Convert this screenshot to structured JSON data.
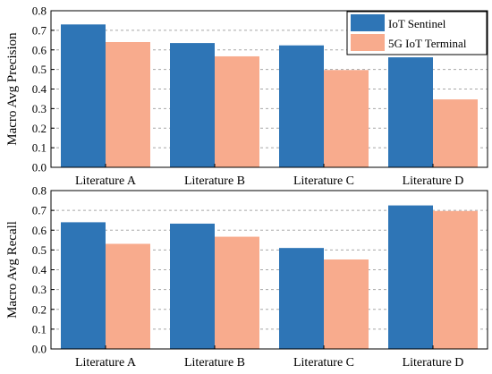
{
  "chart_data": [
    {
      "type": "bar",
      "categories": [
        "Literature A",
        "Literature B",
        "Literature C",
        "Literature D"
      ],
      "series": [
        {
          "name": "IoT Sentinel",
          "values": [
            0.73,
            0.635,
            0.623,
            0.562
          ]
        },
        {
          "name": "5G IoT Terminal",
          "values": [
            0.64,
            0.567,
            0.497,
            0.347
          ]
        }
      ],
      "ylabel": "Macro Avg Precision",
      "ylim": [
        0,
        0.8
      ],
      "yticks": [
        "0.0",
        "0.1",
        "0.2",
        "0.3",
        "0.4",
        "0.5",
        "0.6",
        "0.7",
        "0.8"
      ],
      "grid": true,
      "legend": "top-right"
    },
    {
      "type": "bar",
      "categories": [
        "Literature A",
        "Literature B",
        "Literature C",
        "Literature D"
      ],
      "series": [
        {
          "name": "IoT Sentinel",
          "values": [
            0.64,
            0.633,
            0.51,
            0.725
          ]
        },
        {
          "name": "5G IoT Terminal",
          "values": [
            0.531,
            0.567,
            0.452,
            0.697
          ]
        }
      ],
      "ylabel": "Macro Avg Recall",
      "ylim": [
        0,
        0.8
      ],
      "yticks": [
        "0.0",
        "0.1",
        "0.2",
        "0.3",
        "0.4",
        "0.5",
        "0.6",
        "0.7",
        "0.8"
      ],
      "grid": true
    }
  ],
  "colors": {
    "series": [
      "#2e75b6",
      "#f8ab8d"
    ],
    "grid": "#a8a8a8"
  }
}
